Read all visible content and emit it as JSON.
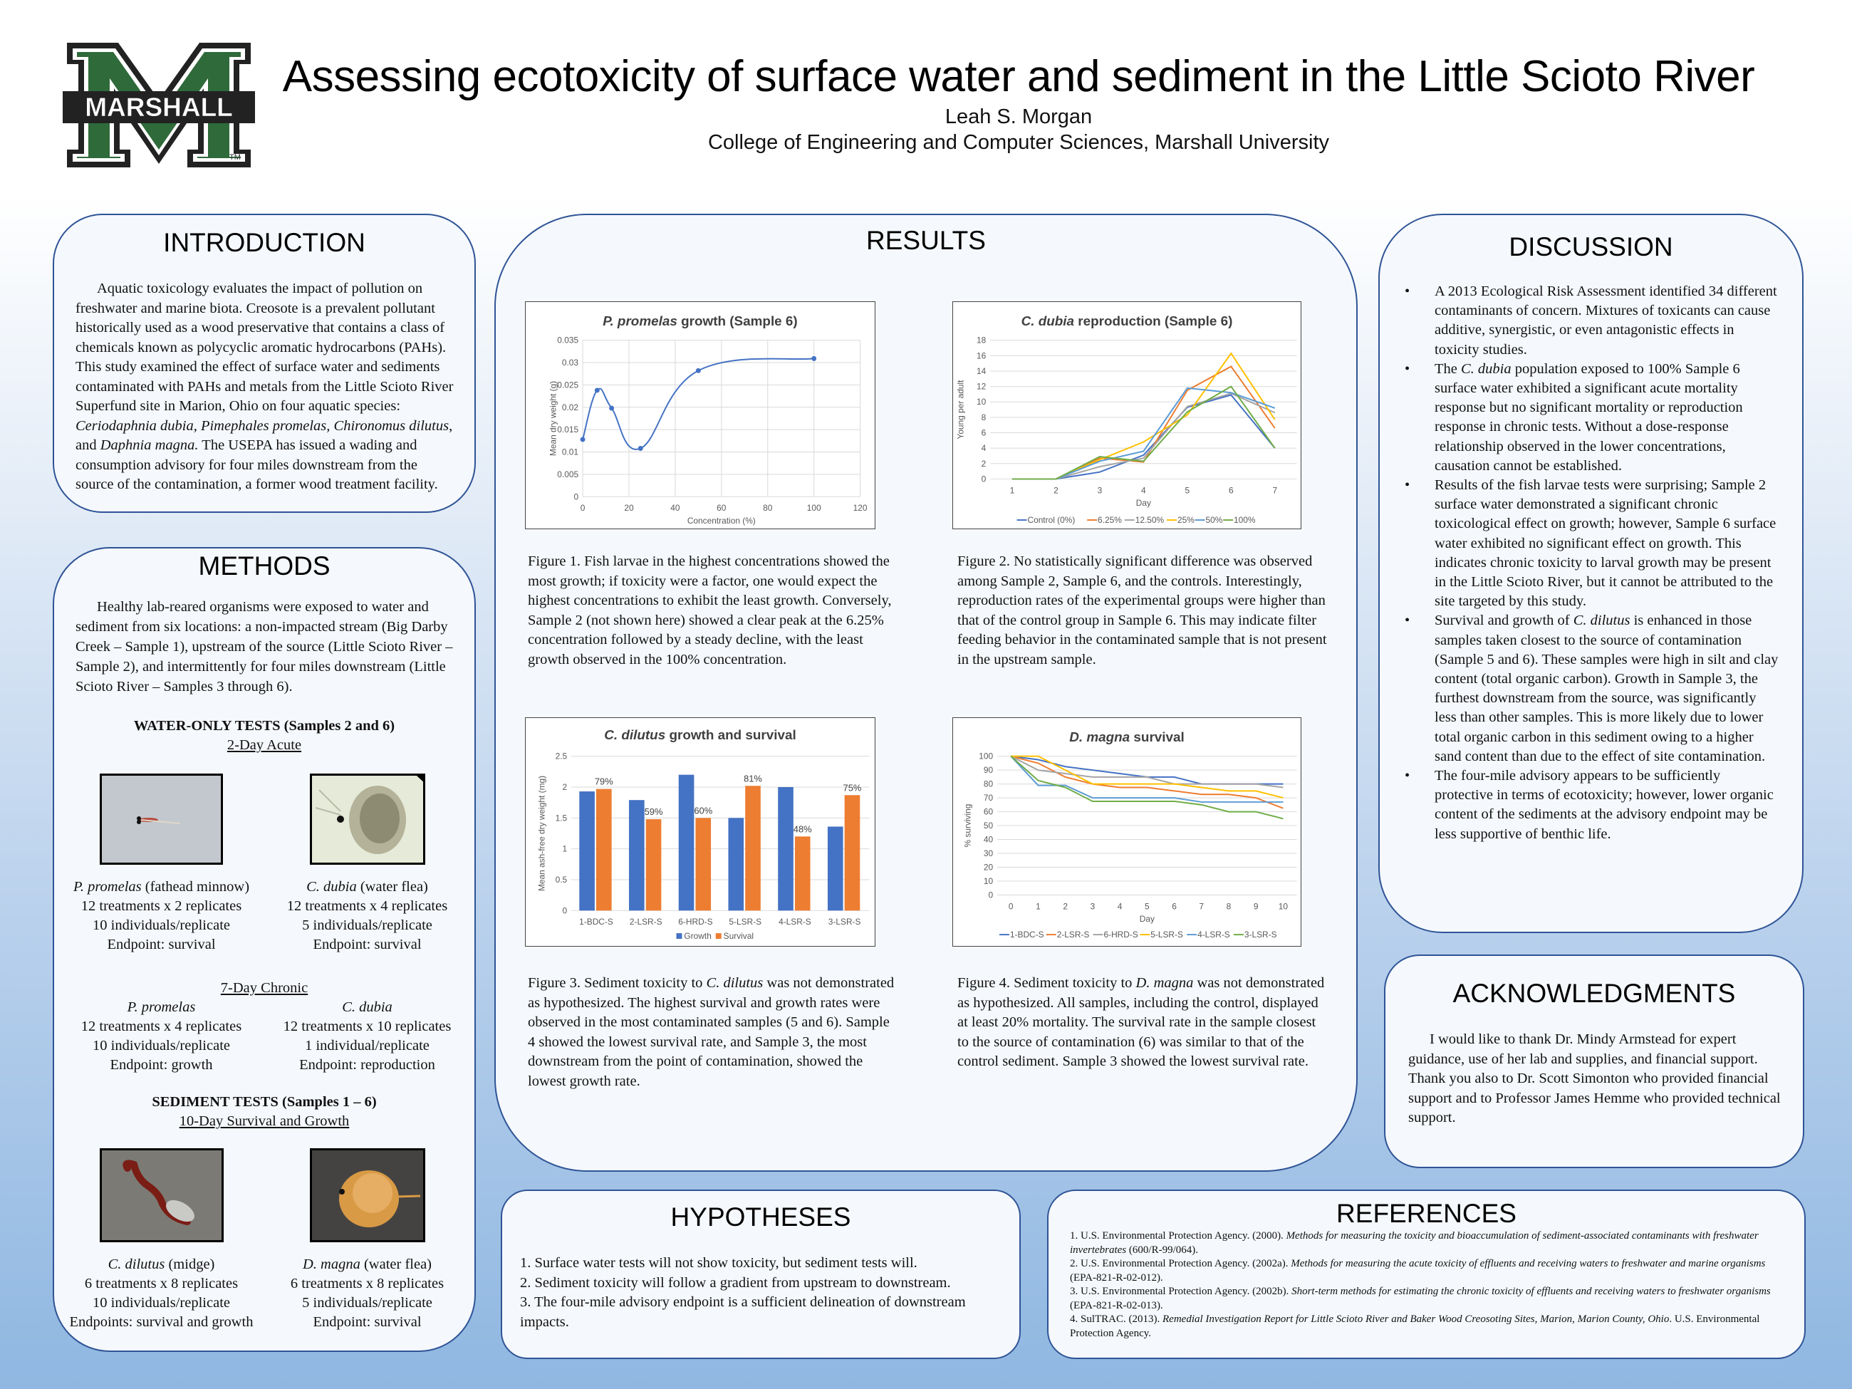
{
  "header": {
    "title": "Assessing ecotoxicity of surface water and sediment in the Little Scioto River",
    "author": "Leah S. Morgan",
    "affiliation": "College of Engineering and Computer Sciences, Marshall University",
    "logo_text": "MARSHALL",
    "logo_tm": "TM",
    "colors": {
      "logo_green": "#2f6a3a",
      "logo_black": "#222222",
      "panel_border": "#2f5496",
      "panel_fill": "#f5f8fc"
    }
  },
  "introduction": {
    "heading": "INTRODUCTION",
    "text_parts": [
      "Aquatic toxicology evaluates the impact of pollution on freshwater and marine biota.  Creosote is a prevalent pollutant historically used as a wood preservative that contains a class of chemicals known as polycyclic aromatic hydrocarbons (PAHs).  This study examined the effect of surface water and sediments contaminated with PAHs and metals from the Little Scioto River Superfund site in Marion, Ohio on four aquatic species: ",
      "Ceriodaphnia dubia, Pimephales promelas, Chironomus dilutus",
      ", and ",
      "Daphnia magna.",
      "  The USEPA has issued a wading and consumption advisory for four miles downstream from the source of the contamination, a former wood treatment facility."
    ]
  },
  "methods": {
    "heading": "METHODS",
    "intro": "Healthy lab-reared organisms were exposed to water and sediment from six locations: a non-impacted stream (Big Darby Creek – Sample 1), upstream of the source (Little Scioto River – Sample 2), and intermittently for four miles downstream (Little Scioto River – Samples 3 through 6).",
    "water_tests": {
      "title": "WATER-ONLY TESTS (Samples 2 and 6)",
      "acute_title": "2-Day Acute",
      "acute": [
        {
          "species": "P. promelas",
          "common": " (fathead minnow)",
          "lines": [
            "12 treatments x 2 replicates",
            "10 individuals/replicate",
            "Endpoint: survival"
          ],
          "photo": "fathead-minnow-larva-photo"
        },
        {
          "species": "C. dubia",
          "common": " (water flea)",
          "lines": [
            "12 treatments x 4 replicates",
            "5 individuals/replicate",
            "Endpoint: survival"
          ],
          "photo": "water-flea-photo"
        }
      ],
      "chronic_title": "7-Day Chronic",
      "chronic": [
        {
          "species": "P. promelas",
          "lines": [
            "12 treatments x 4 replicates",
            "10 individuals/replicate",
            "Endpoint: growth"
          ]
        },
        {
          "species": "C. dubia",
          "lines": [
            "12 treatments x 10 replicates",
            "1 individual/replicate",
            "Endpoint: reproduction"
          ]
        }
      ]
    },
    "sediment_tests": {
      "title": "SEDIMENT TESTS (Samples 1 – 6)",
      "subtitle": "10-Day Survival and Growth",
      "items": [
        {
          "species": "C. dilutus",
          "common": " (midge)",
          "lines": [
            "6 treatments x 8 replicates",
            "10 individuals/replicate",
            "Endpoints: survival and growth"
          ],
          "photo": "midge-larva-photo"
        },
        {
          "species": "D. magna",
          "common": " (water flea)",
          "lines": [
            "6 treatments x 8 replicates",
            "5 individuals/replicate",
            "Endpoint: survival"
          ],
          "photo": "daphnia-magna-photo"
        }
      ]
    }
  },
  "results": {
    "heading": "RESULTS",
    "captions": [
      {
        "label": "Figure 1.",
        "text": " Fish larvae in the highest concentrations showed the most growth; if toxicity were a factor, one would expect the highest concentrations to exhibit the least growth.  Conversely, Sample 2 (not shown here) showed a clear peak at the 6.25% concentration followed by a steady decline, with the least growth observed in the 100% concentration."
      },
      {
        "label": "Figure 2.",
        "text": "  No statistically significant difference was observed among Sample 2, Sample 6, and the controls.  Interestingly, reproduction rates of the experimental groups were higher than that of the control group in Sample 6.  This may indicate filter feeding behavior in the contaminated sample that is not present in the upstream sample."
      },
      {
        "label": "Figure 3.",
        "pre": "  Sediment toxicity to ",
        "species": "C. dilutus",
        "text": " was not demonstrated as hypothesized.  The highest survival and growth rates were observed in the most contaminated samples (5 and 6).  Sample 4 showed the lowest survival rate, and Sample 3, the most downstream from the point of contamination, showed the lowest growth rate."
      },
      {
        "label": "Figure 4.",
        "pre": "  Sediment toxicity to ",
        "species": "D. magna",
        "text": " was not demonstrated as hypothesized.  All samples, including the control, displayed at least 20% mortality.  The survival rate in the sample closest to the source of contamination (6) was similar to that of the control sediment.  Sample 3 showed the lowest survival rate."
      }
    ]
  },
  "chart_data": [
    {
      "type": "line",
      "title": "P. promelas growth (Sample 6)",
      "title_italic": "P. promelas",
      "title_rest": " growth (Sample 6)",
      "xlabel": "Concentration (%)",
      "ylabel": "Mean dry weight (g)",
      "x": [
        0,
        6.25,
        12.5,
        25,
        50,
        100
      ],
      "values": [
        0.0128,
        0.0238,
        0.0198,
        0.0108,
        0.0282,
        0.0309
      ],
      "xlim": [
        0,
        120
      ],
      "ylim": [
        0,
        0.035
      ],
      "xticks": [
        "0",
        "20",
        "40",
        "60",
        "80",
        "100",
        "120"
      ],
      "yticks": [
        "0",
        "0.005",
        "0.01",
        "0.015",
        "0.02",
        "0.025",
        "0.03",
        "0.035"
      ],
      "smooth": true,
      "grid": true,
      "color": "#4472c4"
    },
    {
      "type": "line",
      "title": "C. dubia reproduction (Sample 6)",
      "title_italic": "C. dubia",
      "title_rest": " reproduction (Sample 6)",
      "xlabel": "Day",
      "ylabel": "Young per adult",
      "categories": [
        1,
        2,
        3,
        4,
        5,
        6,
        7
      ],
      "ylim": [
        0,
        18
      ],
      "yticks": [
        "0",
        "2",
        "4",
        "6",
        "8",
        "10",
        "12",
        "14",
        "16",
        "18"
      ],
      "legend_position": "bottom",
      "series": [
        {
          "name": "Control (0%)",
          "color": "#4472c4",
          "values": [
            0,
            0,
            0.9,
            3.1,
            9.3,
            10.9,
            4.0
          ]
        },
        {
          "name": "6.25%",
          "color": "#ed7d31",
          "values": [
            0,
            0,
            2.7,
            2.2,
            11.5,
            14.6,
            6.6
          ]
        },
        {
          "name": "12.50%",
          "color": "#a5a5a5",
          "values": [
            0,
            0,
            1.6,
            2.7,
            9.4,
            11.1,
            8.6
          ]
        },
        {
          "name": "25%",
          "color": "#ffc000",
          "values": [
            0,
            0,
            2.5,
            4.8,
            8.3,
            16.3,
            7.7
          ]
        },
        {
          "name": "50%",
          "color": "#5b9bd5",
          "values": [
            0,
            0,
            2.3,
            3.6,
            11.8,
            11.2,
            9.2
          ]
        },
        {
          "name": "100%",
          "color": "#70ad47",
          "values": [
            0,
            0,
            2.9,
            2.3,
            8.7,
            12.0,
            4.0
          ]
        }
      ]
    },
    {
      "type": "bar",
      "title": "C. dilutus growth and survival",
      "title_italic": "C. dilutus",
      "title_rest": " growth and survival",
      "xlabel": "",
      "ylabel": "Mean ash-free dry weight (mg)",
      "categories": [
        "1-BDC-S",
        "2-LSR-S",
        "6-HRD-S",
        "5-LSR-S",
        "4-LSR-S",
        "3-LSR-S"
      ],
      "ylim": [
        0,
        2.5
      ],
      "yticks": [
        "0",
        "0.5",
        "1",
        "1.5",
        "2",
        "2.5"
      ],
      "legend_position": "bottom",
      "series": [
        {
          "name": "Growth",
          "color": "#4472c4",
          "values": [
            1.93,
            1.79,
            2.2,
            1.5,
            2.0,
            1.36
          ]
        },
        {
          "name": "Survival",
          "color": "#ed7d31",
          "values": [
            1.97,
            1.48,
            1.5,
            2.02,
            1.2,
            1.87
          ],
          "labels": [
            "79%",
            "59%",
            "60%",
            "81%",
            "48%",
            "75%"
          ]
        }
      ]
    },
    {
      "type": "line",
      "title": "D. magna survival",
      "title_italic": "D. magna",
      "title_rest": " survival",
      "xlabel": "Day",
      "ylabel": "% surviving",
      "categories": [
        0,
        1,
        2,
        3,
        4,
        5,
        6,
        7,
        8,
        9,
        10
      ],
      "ylim": [
        0,
        100
      ],
      "yticks": [
        "0",
        "10",
        "20",
        "30",
        "40",
        "50",
        "60",
        "70",
        "80",
        "90",
        "100"
      ],
      "legend_position": "bottom",
      "series": [
        {
          "name": "1-BDC-S",
          "color": "#4472c4",
          "values": [
            100,
            97.5,
            92.5,
            90,
            87.5,
            85,
            85,
            80,
            80,
            80,
            80
          ]
        },
        {
          "name": "2-LSR-S",
          "color": "#ed7d31",
          "values": [
            100,
            95,
            85,
            80,
            77.5,
            77.5,
            75,
            72.5,
            72.5,
            70,
            62.5
          ]
        },
        {
          "name": "6-HRD-S",
          "color": "#a5a5a5",
          "values": [
            100,
            90,
            87.5,
            85,
            85,
            85,
            80,
            80,
            80,
            80,
            77.5
          ]
        },
        {
          "name": "5-LSR-S",
          "color": "#ffc000",
          "values": [
            100,
            100,
            90,
            80,
            80,
            80,
            80,
            77.5,
            75,
            75,
            70
          ]
        },
        {
          "name": "4-LSR-S",
          "color": "#5b9bd5",
          "values": [
            100,
            79,
            79,
            70,
            70,
            70,
            70,
            67,
            67,
            67,
            67
          ]
        },
        {
          "name": "3-LSR-S",
          "color": "#70ad47",
          "values": [
            100,
            82.5,
            77.5,
            67.5,
            67.5,
            67.5,
            67.5,
            65,
            60,
            60,
            55
          ]
        }
      ]
    }
  ],
  "discussion": {
    "heading": "DISCUSSION",
    "bullets": [
      {
        "parts": [
          "A 2013 Ecological Risk Assessment identified 34 different contaminants of concern.  Mixtures of toxicants can cause additive, synergistic, or even antagonistic effects in toxicity studies."
        ]
      },
      {
        "pre": "The ",
        "species": "C. dubia",
        "post": " population exposed to 100% Sample 6 surface water exhibited a significant acute mortality response but no significant mortality or reproduction response in chronic tests.  Without a dose-response relationship observed in the lower concentrations, causation cannot be established."
      },
      {
        "parts": [
          "Results of the fish larvae tests were surprising; Sample 2 surface water demonstrated a significant chronic toxicological effect on growth; however, Sample 6 surface water exhibited no significant effect on growth.  This indicates chronic toxicity to larval growth may be present in the Little Scioto River, but it cannot be attributed to the site targeted by this study."
        ]
      },
      {
        "pre": "Survival and growth of ",
        "species": "C. dilutus",
        "post": " is enhanced in those samples taken closest to the source of contamination (Sample 5 and 6).  These samples were high in silt and clay content (total organic carbon).  Growth in Sample 3, the furthest downstream from the source, was significantly less than other samples.  This is more likely due to lower total organic carbon in this sediment owing to a higher sand content than due to the effect of site contamination."
      },
      {
        "parts": [
          "The four-mile advisory appears to be sufficiently protective in terms of ecotoxicity; however, lower organic content of the sediments at the advisory endpoint may be less supportive of benthic life."
        ]
      }
    ]
  },
  "acknowledgments": {
    "heading": "ACKNOWLEDGMENTS",
    "text": "I would like to thank Dr. Mindy Armstead for expert guidance, use of her lab and supplies, and financial support.  Thank you also to Dr. Scott Simonton who provided financial support and to Professor James Hemme who provided technical support."
  },
  "hypotheses": {
    "heading": "HYPOTHESES",
    "items": [
      "1.  Surface water tests will not show toxicity, but sediment tests will.",
      "2.  Sediment toxicity will follow a gradient from upstream to downstream.",
      "3.  The four-mile advisory endpoint is a sufficient delineation of downstream impacts."
    ]
  },
  "references": {
    "heading": "REFERENCES",
    "items": [
      {
        "pre": "1. U.S. Environmental Protection Agency. (2000). ",
        "title": "Methods for measuring the toxicity and bioaccumulation of sediment-associated contaminants with freshwater invertebrates",
        "post": " (600/R-99/064)."
      },
      {
        "pre": "2. U.S. Environmental Protection Agency. (2002a). ",
        "title": "Methods for measuring the acute toxicity of effluents and receiving waters to freshwater and marine organisms",
        "post": "  (EPA-821-R-02-012)."
      },
      {
        "pre": "3. U.S. Environmental Protection Agency. (2002b). ",
        "title": "Short-term methods for estimating the chronic toxicity of effluents and receiving waters to freshwater organisms",
        "post": " (EPA-821-R-02-013)."
      },
      {
        "pre": "4. SulTRAC. (2013). ",
        "title": "Remedial Investigation Report for Little Scioto River and Baker Wood Creosoting Sites, Marion, Marion County, Ohio",
        "post": ". U.S. Environmental Protection Agency."
      }
    ]
  }
}
